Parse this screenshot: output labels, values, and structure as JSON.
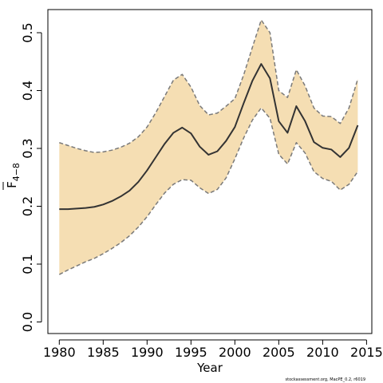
{
  "chart_data": {
    "type": "area",
    "xlabel": "Year",
    "ylabel_main": "F",
    "ylabel_sub": "4−8",
    "xlim": [
      1978.7,
      2015.6
    ],
    "ylim": [
      -0.02,
      0.54
    ],
    "x_ticks": [
      "1980",
      "1985",
      "1990",
      "1995",
      "2000",
      "2005",
      "2010",
      "2015"
    ],
    "y_ticks": [
      "0.0",
      "0.1",
      "0.2",
      "0.3",
      "0.4",
      "0.5"
    ],
    "band_color": "#f5deb3",
    "line_color": "#333333",
    "bound_color": "#7a7a7a",
    "years": [
      1980,
      1981,
      1982,
      1983,
      1984,
      1985,
      1986,
      1987,
      1988,
      1989,
      1990,
      1991,
      1992,
      1993,
      1994,
      1995,
      1996,
      1997,
      1998,
      1999,
      2000,
      2001,
      2002,
      2003,
      2004,
      2005,
      2006,
      2007,
      2008,
      2009,
      2010,
      2011,
      2012,
      2013,
      2014
    ],
    "series": [
      {
        "role": "estimate",
        "values": [
          0.195,
          0.195,
          0.196,
          0.197,
          0.199,
          0.203,
          0.209,
          0.217,
          0.227,
          0.242,
          0.262,
          0.285,
          0.308,
          0.327,
          0.336,
          0.326,
          0.303,
          0.289,
          0.295,
          0.313,
          0.337,
          0.378,
          0.417,
          0.446,
          0.421,
          0.347,
          0.327,
          0.373,
          0.347,
          0.311,
          0.301,
          0.298,
          0.285,
          0.301,
          0.34
        ]
      },
      {
        "role": "upper",
        "values": [
          0.31,
          0.305,
          0.3,
          0.296,
          0.293,
          0.294,
          0.297,
          0.302,
          0.309,
          0.32,
          0.337,
          0.362,
          0.39,
          0.418,
          0.428,
          0.406,
          0.374,
          0.358,
          0.361,
          0.373,
          0.386,
          0.427,
          0.475,
          0.522,
          0.5,
          0.4,
          0.388,
          0.436,
          0.408,
          0.37,
          0.356,
          0.355,
          0.343,
          0.37,
          0.42
        ]
      },
      {
        "role": "lower",
        "values": [
          0.082,
          0.09,
          0.097,
          0.104,
          0.11,
          0.118,
          0.127,
          0.137,
          0.149,
          0.164,
          0.182,
          0.203,
          0.223,
          0.238,
          0.246,
          0.245,
          0.232,
          0.222,
          0.229,
          0.249,
          0.282,
          0.318,
          0.349,
          0.37,
          0.352,
          0.29,
          0.273,
          0.31,
          0.292,
          0.26,
          0.248,
          0.243,
          0.228,
          0.238,
          0.26
        ]
      }
    ],
    "credit": "stockassessment.org, MacPE_0.2, r6019"
  }
}
